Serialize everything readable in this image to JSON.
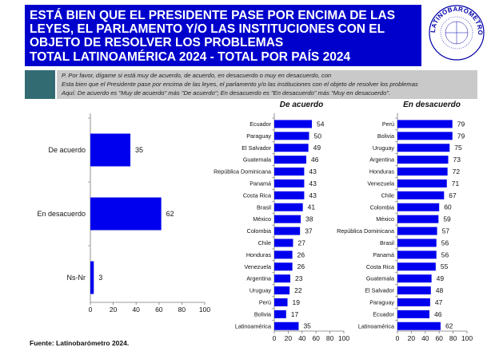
{
  "header": {
    "title_lines": [
      "ESTÁ BIEN QUE EL PRESIDENTE PASE POR ENCIMA DE LAS",
      "LEYES, EL PARLAMENTO Y/O LAS INSTITUCIONES CON EL",
      "OBJETO DE RESOLVER LOS PROBLEMAS"
    ],
    "subtitle": "TOTAL LATINOAMÉRICA 2024   - TOTAL POR PAÍS 2024",
    "logo_text": "LATINOBARÓMETRO"
  },
  "question": {
    "lines": [
      "P. Por favor, dígame si está muy de acuerdo, de acuerdo, en desacuerdo o muy en desacuerdo, con",
      "Esta bien que el Presidente pase por encima de las leyes, el parlamento y/o las instituciones con el objeto de resolver los problemas",
      "Aquí: De acuerdo es \"Muy de acuerdo\" más \"De acuerdo\"; En desacuerdo es \"En desacuerdo\" más \"Muy en desacuerdo\"."
    ]
  },
  "colors": {
    "bar": "#0000ee",
    "title_bg": "#0000cc",
    "teal": "#336b73",
    "gray": "#c9c9c9"
  },
  "source": "Fuente: Latinobarómetro 2024.",
  "chart_data": [
    {
      "type": "bar",
      "orientation": "horizontal",
      "categories": [
        "De acuerdo",
        "En desacuerdo",
        "Ns-Nr"
      ],
      "values": [
        35,
        62,
        3
      ],
      "xlim": [
        0,
        100
      ],
      "ticks": [
        0,
        20,
        40,
        60,
        80,
        100
      ]
    },
    {
      "type": "bar",
      "orientation": "horizontal",
      "title": "De acuerdo",
      "categories": [
        "Ecuador",
        "Paraguay",
        "El Salvador",
        "Guatemala",
        "República Dominicana",
        "Panamá",
        "Costa Rica",
        "Brasil",
        "México",
        "Colombia",
        "Chile",
        "Honduras",
        "Venezuela",
        "Argentina",
        "Uruguay",
        "Perú",
        "Bolivia",
        "Latinoamérica"
      ],
      "values": [
        54,
        50,
        49,
        46,
        43,
        43,
        43,
        41,
        38,
        37,
        27,
        26,
        26,
        23,
        22,
        19,
        17,
        35
      ],
      "xlim": [
        0,
        100
      ],
      "ticks": [
        0,
        20,
        40,
        60,
        80,
        100
      ]
    },
    {
      "type": "bar",
      "orientation": "horizontal",
      "title": "En desacuerdo",
      "categories": [
        "Perú",
        "Bolivia",
        "Uruguay",
        "Argentina",
        "Honduras",
        "Venezuela",
        "Chile",
        "Colombia",
        "México",
        "República Dominicana",
        "Brasil",
        "Panamá",
        "Costa Rica",
        "Guatemala",
        "El Salvador",
        "Paraguay",
        "Ecuador",
        "Latinoamérica"
      ],
      "values": [
        79,
        79,
        75,
        73,
        72,
        71,
        67,
        60,
        59,
        57,
        56,
        56,
        55,
        49,
        48,
        47,
        46,
        62
      ],
      "xlim": [
        0,
        100
      ],
      "ticks": [
        0,
        20,
        40,
        60,
        80,
        100
      ]
    }
  ]
}
